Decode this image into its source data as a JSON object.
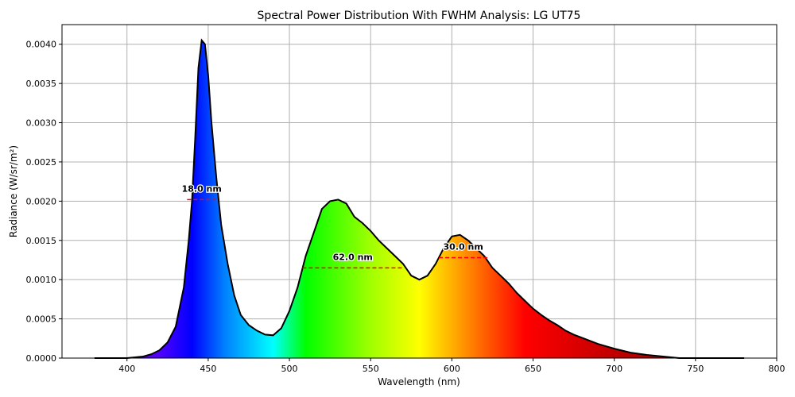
{
  "chart_data": {
    "type": "area",
    "title": "Spectral Power Distribution With FWHM Analysis: LG UT75",
    "xlabel": "Wavelength (nm)",
    "ylabel": "Radiance (W/sr/m²)",
    "xlim": [
      360,
      800
    ],
    "ylim": [
      0,
      0.00425
    ],
    "grid": true,
    "xticks": [
      400,
      450,
      500,
      550,
      600,
      650,
      700,
      750,
      800
    ],
    "yticks": [
      "0.0000",
      "0.0005",
      "0.0010",
      "0.0015",
      "0.0020",
      "0.0025",
      "0.0030",
      "0.0035",
      "0.0040"
    ],
    "fill": "visible-spectrum gradient",
    "x": [
      380,
      400,
      410,
      415,
      420,
      425,
      430,
      435,
      438,
      440,
      442,
      444,
      446,
      448,
      450,
      452,
      455,
      458,
      462,
      466,
      470,
      475,
      480,
      485,
      490,
      495,
      500,
      505,
      510,
      515,
      520,
      525,
      530,
      535,
      540,
      545,
      550,
      555,
      560,
      565,
      570,
      575,
      580,
      585,
      590,
      595,
      600,
      605,
      610,
      615,
      620,
      625,
      630,
      635,
      640,
      645,
      650,
      655,
      660,
      665,
      670,
      675,
      680,
      690,
      700,
      710,
      720,
      730,
      740,
      780
    ],
    "y": [
      0,
      0,
      2e-05,
      5e-05,
      0.0001,
      0.0002,
      0.0004,
      0.0009,
      0.0015,
      0.002,
      0.0028,
      0.0037,
      0.00405,
      0.004,
      0.0036,
      0.003,
      0.0023,
      0.0017,
      0.0012,
      0.0008,
      0.00055,
      0.00042,
      0.00035,
      0.0003,
      0.00029,
      0.00038,
      0.0006,
      0.0009,
      0.0013,
      0.0016,
      0.0019,
      0.002,
      0.00202,
      0.00197,
      0.0018,
      0.00172,
      0.00162,
      0.0015,
      0.0014,
      0.0013,
      0.0012,
      0.00105,
      0.001,
      0.00105,
      0.0012,
      0.0014,
      0.00155,
      0.00157,
      0.0015,
      0.0014,
      0.0013,
      0.00115,
      0.00105,
      0.00095,
      0.00083,
      0.00073,
      0.00063,
      0.00055,
      0.00048,
      0.00042,
      0.00035,
      0.0003,
      0.00026,
      0.00018,
      0.00012,
      7e-05,
      4e-05,
      2e-05,
      0,
      0
    ],
    "fwhm": [
      {
        "label": "18.0 nm",
        "x0": 437,
        "x1": 455,
        "y": 0.00202
      },
      {
        "label": "62.0 nm",
        "x0": 508,
        "x1": 570,
        "y": 0.00115
      },
      {
        "label": "30.0 nm",
        "x0": 592,
        "x1": 622,
        "y": 0.00128
      }
    ],
    "fwhm_color": "#ff0000"
  }
}
